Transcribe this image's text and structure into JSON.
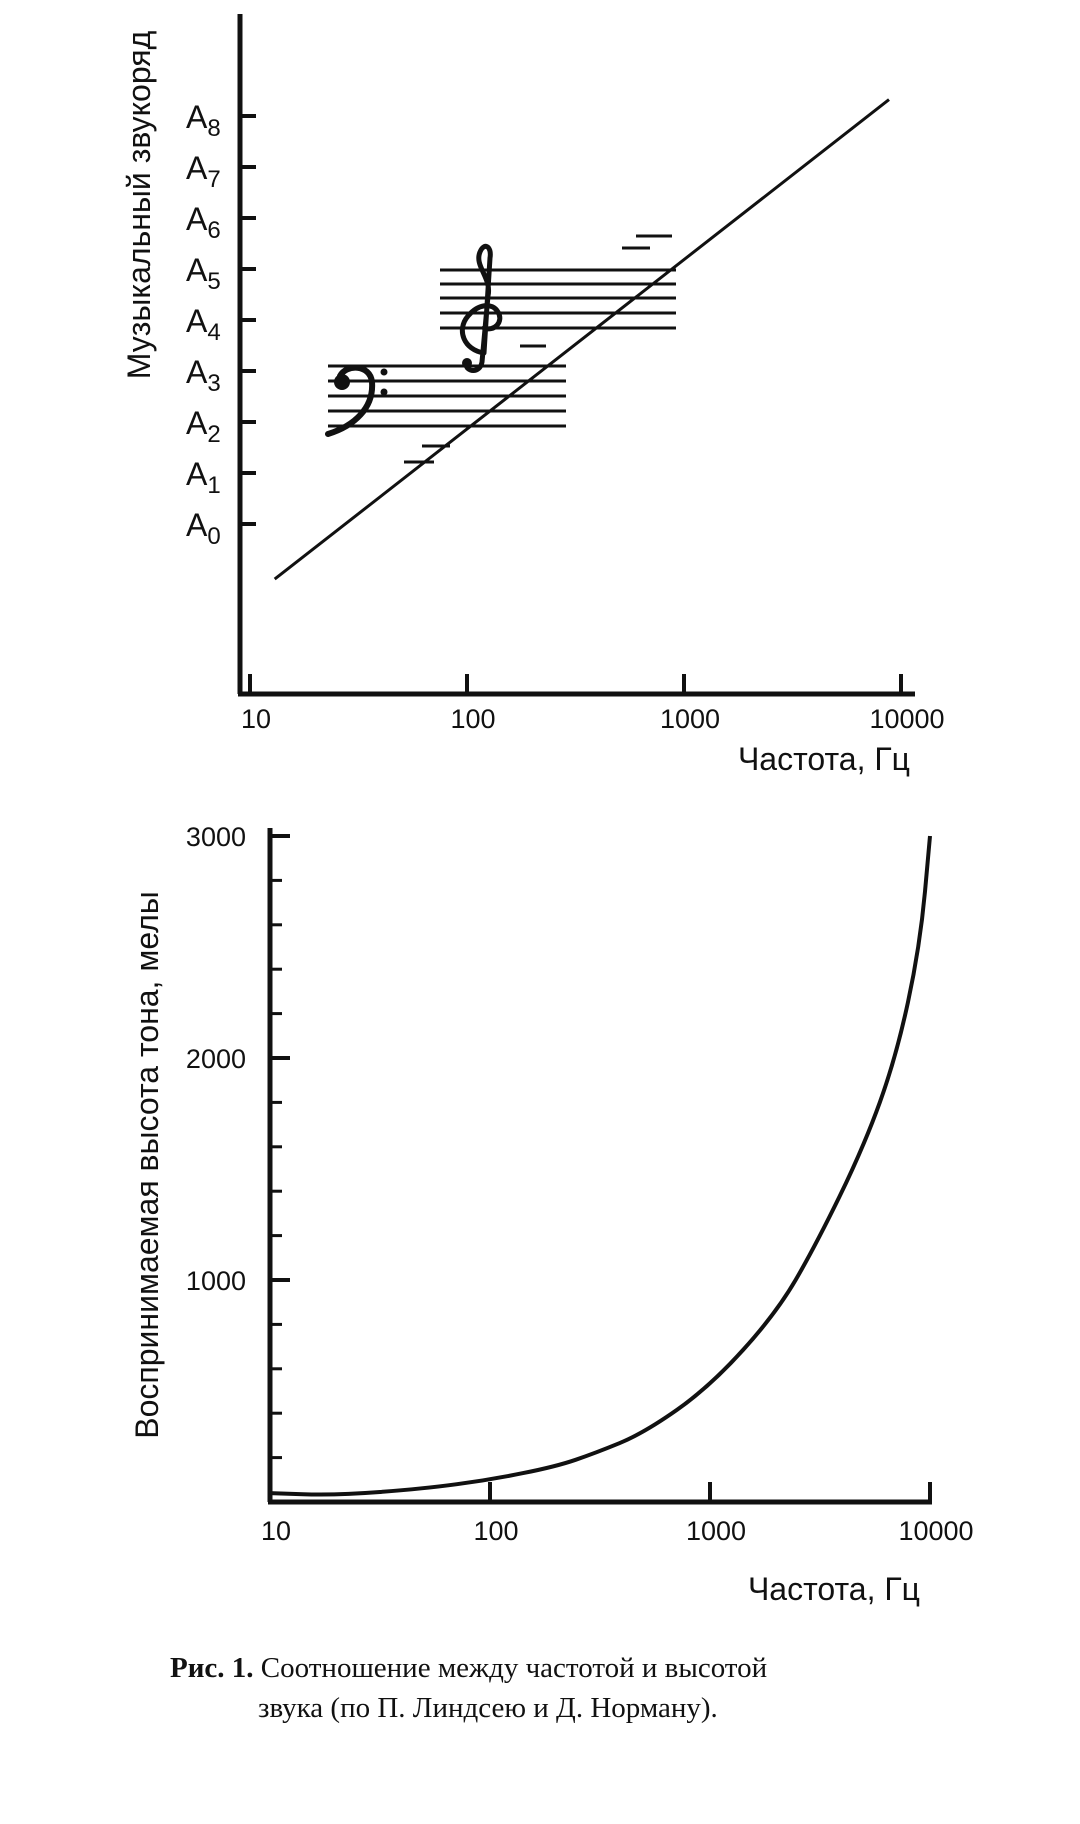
{
  "chart_data": [
    {
      "type": "line",
      "xscale": "log",
      "xlabel": "Частота, Гц",
      "ylabel": "Музыкальный звукоряд",
      "x_ticks": [
        "10",
        "100",
        "1000",
        "10000"
      ],
      "y_ticks": [
        {
          "base": "A",
          "sub": "0"
        },
        {
          "base": "A",
          "sub": "1"
        },
        {
          "base": "A",
          "sub": "2"
        },
        {
          "base": "A",
          "sub": "3"
        },
        {
          "base": "A",
          "sub": "4"
        },
        {
          "base": "A",
          "sub": "5"
        },
        {
          "base": "A",
          "sub": "6"
        },
        {
          "base": "A",
          "sub": "7"
        },
        {
          "base": "A",
          "sub": "8"
        }
      ],
      "xlim": [
        10,
        10000
      ],
      "ylim": [
        "A0",
        "A8"
      ],
      "series": [
        {
          "x": [
            13,
            28,
            55,
            110,
            220,
            440,
            880,
            1760,
            3520,
            7040
          ],
          "y": [
            "—",
            "A0",
            "A1",
            "A2",
            "A3",
            "A4",
            "A5",
            "A6",
            "A7",
            "A8"
          ]
        }
      ],
      "annotations": [
        "bass-clef",
        "treble-clef"
      ]
    },
    {
      "type": "line",
      "xscale": "log",
      "xlabel": "Частота, Гц",
      "ylabel": "Воспринимаемая высота тона, мелы",
      "x_ticks": [
        "10",
        "100",
        "1000",
        "10000"
      ],
      "y_ticks": [
        "1000",
        "2000",
        "3000"
      ],
      "xlim": [
        10,
        10000
      ],
      "ylim": [
        0,
        3000
      ],
      "series": [
        {
          "x": [
            10,
            20,
            50,
            100,
            200,
            300,
            500,
            1000,
            2000,
            3000,
            5000,
            7000,
            9000,
            10000
          ],
          "y": [
            40,
            30,
            60,
            100,
            160,
            220,
            310,
            520,
            850,
            1150,
            1600,
            2000,
            2500,
            3000
          ]
        }
      ]
    }
  ],
  "caption": {
    "lead": "Рис. 1.",
    "line1": "Соотношение между частотой и высотой",
    "line2": "звука (по П. Линдсею и Д. Норману)."
  }
}
